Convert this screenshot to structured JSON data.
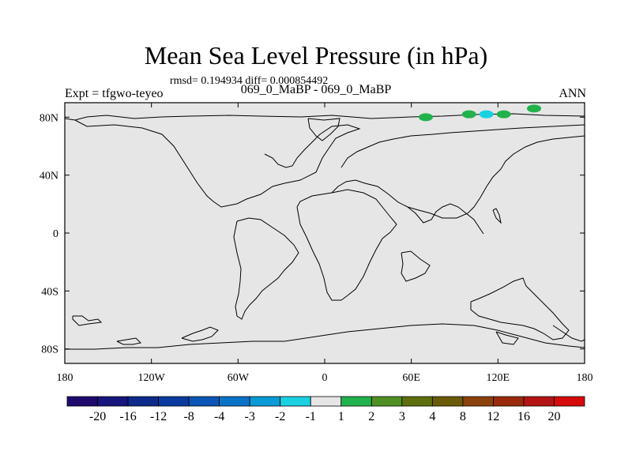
{
  "header": {
    "title": "Mean Sea Level Pressure (in hPa)",
    "stats": "rmsd= 0.194934 diff= 0.000854492",
    "expt": "Expt = tfgwo-teyeo",
    "cases": "069_0_MaBP - 069_0_MaBP",
    "season": "ANN"
  },
  "chart_data": {
    "type": "heatmap",
    "title": "Mean Sea Level Pressure (in hPa)",
    "xlabel": "",
    "ylabel": "",
    "xlim": [
      -180,
      180
    ],
    "ylim": [
      -90,
      90
    ],
    "x_ticks": [
      {
        "value": -180,
        "label": "180"
      },
      {
        "value": -120,
        "label": "120W"
      },
      {
        "value": -60,
        "label": "60W"
      },
      {
        "value": 0,
        "label": "0"
      },
      {
        "value": 60,
        "label": "60E"
      },
      {
        "value": 120,
        "label": "120E"
      },
      {
        "value": 180,
        "label": "180"
      }
    ],
    "y_ticks": [
      {
        "value": 80,
        "label": "80N"
      },
      {
        "value": 40,
        "label": "40N"
      },
      {
        "value": 0,
        "label": "0"
      },
      {
        "value": -40,
        "label": "40S"
      },
      {
        "value": -80,
        "label": "80S"
      }
    ],
    "background_value_range": "-1 to 1",
    "background_color": "#e6e6e6",
    "anomalies": [
      {
        "lon": 70,
        "lat": 80,
        "bin": "1 to 2",
        "color": "#22b24c"
      },
      {
        "lon": 100,
        "lat": 82,
        "bin": "1 to 2",
        "color": "#22b24c"
      },
      {
        "lon": 112,
        "lat": 82,
        "bin": "-2 to -1",
        "color": "#19d1e1"
      },
      {
        "lon": 124,
        "lat": 82,
        "bin": "1 to 2",
        "color": "#22b24c"
      },
      {
        "lon": 145,
        "lat": 86,
        "bin": "1 to 2",
        "color": "#22b24c"
      }
    ],
    "colorbar": {
      "levels": [
        "-20",
        "-16",
        "-12",
        "-8",
        "-4",
        "-3",
        "-2",
        "-1",
        "1",
        "2",
        "3",
        "4",
        "8",
        "12",
        "16",
        "20"
      ],
      "colors": [
        "#1f0a6e",
        "#16167e",
        "#0e2a8a",
        "#0a3aa0",
        "#0a55b5",
        "#0a73c8",
        "#0a9bd6",
        "#19d1e1",
        "#e6e6e6",
        "#22b24c",
        "#4f8f24",
        "#5e6f0f",
        "#6b5a08",
        "#8a420c",
        "#9b2a0c",
        "#b41414",
        "#d60a0a"
      ]
    }
  }
}
